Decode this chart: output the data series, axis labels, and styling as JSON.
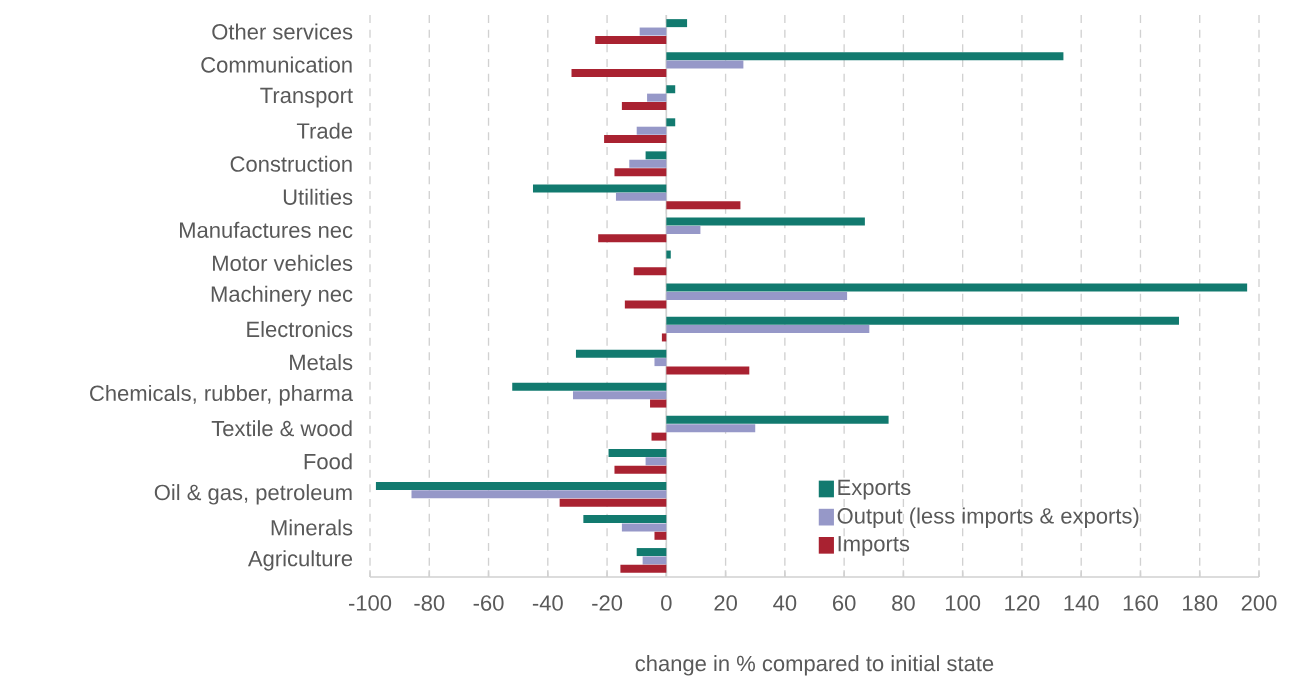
{
  "chart_data": {
    "type": "bar",
    "orientation": "horizontal",
    "xlabel": "change in % compared to initial state",
    "categories": [
      "Other services",
      "Communication",
      "Transport",
      "Trade",
      "Construction",
      "Utilities",
      "Manufactures nec",
      "Motor vehicles",
      "Machinery nec",
      "Electronics",
      "Metals",
      "Chemicals, rubber, pharma",
      "Textile & wood",
      "Food",
      "Oil & gas, petroleum",
      "Minerals",
      "Agriculture"
    ],
    "series": [
      {
        "name": "Exports",
        "color": "#127a6f",
        "values": [
          7,
          134,
          3,
          3,
          -7,
          -45,
          67,
          1.5,
          196,
          173,
          -30.5,
          -52,
          75,
          -19.5,
          -98,
          -28,
          -10
        ]
      },
      {
        "name": "Output (less imports & exports)",
        "color": "#9698c8",
        "values": [
          -9,
          26,
          -6.5,
          -10,
          -12.5,
          -17,
          11.5,
          0,
          61,
          68.5,
          -4,
          -31.5,
          30,
          -7,
          -86,
          -15,
          -8
        ]
      },
      {
        "name": "Imports",
        "color": "#a92231",
        "values": [
          -24,
          -32,
          -15,
          -21,
          -17.5,
          25,
          -23,
          -11,
          -14,
          -1.5,
          28,
          -5.5,
          -5,
          -17.5,
          -36,
          -4,
          -15.5
        ]
      }
    ],
    "xlim": [
      -100,
      200
    ],
    "xticks": [
      -100,
      -80,
      -60,
      -40,
      -20,
      0,
      20,
      40,
      60,
      80,
      100,
      120,
      140,
      160,
      180,
      200
    ],
    "grid": "x",
    "legend": "bottom right"
  }
}
